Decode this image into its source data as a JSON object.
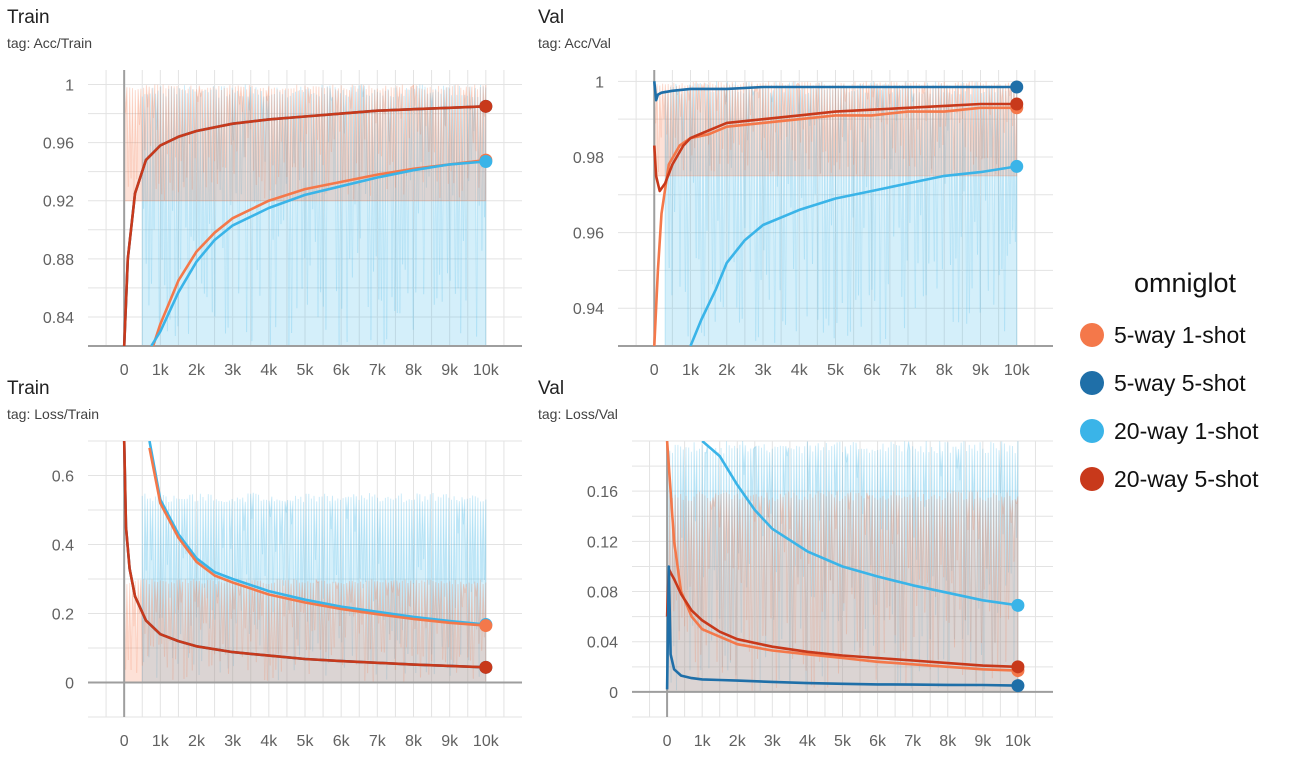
{
  "legend": {
    "title": "omniglot",
    "items": [
      {
        "label": "5-way 1-shot",
        "color": "#f4784a"
      },
      {
        "label": "5-way 5-shot",
        "color": "#1f6fa8"
      },
      {
        "label": "20-way 1-shot",
        "color": "#3ab4e8"
      },
      {
        "label": "20-way 5-shot",
        "color": "#c8391b"
      }
    ]
  },
  "chart_data": [
    {
      "type": "line",
      "title": "Train",
      "subtitle": "tag: Acc/Train",
      "xlim": [
        -1000,
        11000
      ],
      "ylim": [
        0.82,
        1.01
      ],
      "xticks": [
        0,
        1000,
        2000,
        3000,
        4000,
        5000,
        6000,
        7000,
        8000,
        9000,
        10000
      ],
      "xtick_labels": [
        "0",
        "1k",
        "2k",
        "3k",
        "4k",
        "5k",
        "6k",
        "7k",
        "8k",
        "9k",
        "10k"
      ],
      "yticks": [
        0.84,
        0.88,
        0.92,
        0.96,
        1
      ],
      "ytick_labels": [
        "0.84",
        "0.88",
        "0.92",
        "0.96",
        "1"
      ],
      "noise_bands": [
        {
          "series": "20-way 1-shot",
          "color": "#3ab4e8",
          "x_from": 500,
          "x_to": 10000,
          "y_low": 0.82,
          "y_high": 1.0
        },
        {
          "series": "5-way 1-shot",
          "color": "#f4784a",
          "x_from": 0,
          "x_to": 10000,
          "y_low": 0.92,
          "y_high": 1.0
        }
      ],
      "series": [
        {
          "name": "5-way 1-shot",
          "color": "#f4784a",
          "x": [
            800,
            1000,
            1500,
            2000,
            2500,
            3000,
            4000,
            5000,
            6000,
            7000,
            8000,
            9000,
            10000
          ],
          "y": [
            0.82,
            0.835,
            0.865,
            0.885,
            0.898,
            0.908,
            0.92,
            0.928,
            0.933,
            0.938,
            0.942,
            0.945,
            0.948
          ]
        },
        {
          "name": "20-way 1-shot",
          "color": "#3ab4e8",
          "x": [
            750,
            1000,
            1500,
            2000,
            2500,
            3000,
            4000,
            5000,
            6000,
            7000,
            8000,
            9000,
            10000
          ],
          "y": [
            0.82,
            0.83,
            0.857,
            0.878,
            0.893,
            0.903,
            0.915,
            0.924,
            0.93,
            0.936,
            0.941,
            0.945,
            0.947
          ]
        },
        {
          "name": "5-way 5-shot",
          "color": "#1f6fa8",
          "x": [
            0,
            100,
            300,
            600,
            1000,
            1500,
            2000,
            3000,
            4000,
            5000,
            6000,
            7000,
            8000,
            9000,
            10000
          ],
          "y": [
            0.82,
            0.88,
            0.925,
            0.948,
            0.958,
            0.964,
            0.968,
            0.973,
            0.976,
            0.978,
            0.98,
            0.982,
            0.983,
            0.984,
            0.985
          ]
        },
        {
          "name": "20-way 5-shot",
          "color": "#c8391b",
          "x": [
            0,
            100,
            300,
            600,
            1000,
            1500,
            2000,
            3000,
            4000,
            5000,
            6000,
            7000,
            8000,
            9000,
            10000
          ],
          "y": [
            0.82,
            0.88,
            0.925,
            0.948,
            0.958,
            0.964,
            0.968,
            0.973,
            0.976,
            0.978,
            0.98,
            0.982,
            0.983,
            0.984,
            0.985
          ]
        }
      ]
    },
    {
      "type": "line",
      "title": "Val",
      "subtitle": "tag: Acc/Val",
      "xlim": [
        -1000,
        11000
      ],
      "ylim": [
        0.93,
        1.003
      ],
      "xticks": [
        0,
        1000,
        2000,
        3000,
        4000,
        5000,
        6000,
        7000,
        8000,
        9000,
        10000
      ],
      "xtick_labels": [
        "0",
        "1k",
        "2k",
        "3k",
        "4k",
        "5k",
        "6k",
        "7k",
        "8k",
        "9k",
        "10k"
      ],
      "yticks": [
        0.94,
        0.96,
        0.98,
        1
      ],
      "ytick_labels": [
        "0.94",
        "0.96",
        "0.98",
        "1"
      ],
      "noise_bands": [
        {
          "series": "20-way 1-shot",
          "color": "#3ab4e8",
          "x_from": 300,
          "x_to": 10000,
          "y_low": 0.93,
          "y_high": 1.0
        },
        {
          "series": "5-way 1-shot",
          "color": "#f4784a",
          "x_from": 0,
          "x_to": 10000,
          "y_low": 0.975,
          "y_high": 1.0
        }
      ],
      "series": [
        {
          "name": "20-way 1-shot",
          "color": "#3ab4e8",
          "x": [
            1000,
            1300,
            1700,
            2000,
            2500,
            3000,
            4000,
            5000,
            6000,
            7000,
            8000,
            9000,
            10000
          ],
          "y": [
            0.93,
            0.937,
            0.945,
            0.952,
            0.958,
            0.962,
            0.966,
            0.969,
            0.971,
            0.973,
            0.975,
            0.976,
            0.9775
          ]
        },
        {
          "name": "5-way 1-shot",
          "color": "#f4784a",
          "x": [
            0,
            100,
            200,
            400,
            700,
            1000,
            1500,
            2000,
            3000,
            4000,
            5000,
            6000,
            7000,
            8000,
            9000,
            10000
          ],
          "y": [
            0.93,
            0.95,
            0.965,
            0.978,
            0.983,
            0.985,
            0.986,
            0.988,
            0.989,
            0.99,
            0.991,
            0.991,
            0.992,
            0.992,
            0.993,
            0.993
          ]
        },
        {
          "name": "20-way 5-shot",
          "color": "#c8391b",
          "x": [
            0,
            50,
            150,
            300,
            500,
            800,
            1000,
            1500,
            2000,
            3000,
            4000,
            5000,
            6000,
            7000,
            8000,
            9000,
            10000
          ],
          "y": [
            0.983,
            0.975,
            0.971,
            0.973,
            0.978,
            0.983,
            0.985,
            0.987,
            0.989,
            0.99,
            0.991,
            0.992,
            0.9925,
            0.993,
            0.9935,
            0.994,
            0.994
          ]
        },
        {
          "name": "5-way 5-shot",
          "color": "#1f6fa8",
          "x": [
            0,
            50,
            100,
            200,
            500,
            1000,
            2000,
            3000,
            4000,
            5000,
            6000,
            7000,
            8000,
            9000,
            10000
          ],
          "y": [
            1.0,
            0.995,
            0.9965,
            0.997,
            0.9975,
            0.998,
            0.998,
            0.9985,
            0.9985,
            0.9985,
            0.9985,
            0.9985,
            0.9985,
            0.9985,
            0.9985
          ]
        }
      ]
    },
    {
      "type": "line",
      "title": "Train",
      "subtitle": "tag: Loss/Train",
      "xlim": [
        -1000,
        11000
      ],
      "ylim": [
        -0.1,
        0.7
      ],
      "xticks": [
        0,
        1000,
        2000,
        3000,
        4000,
        5000,
        6000,
        7000,
        8000,
        9000,
        10000
      ],
      "xtick_labels": [
        "0",
        "1k",
        "2k",
        "3k",
        "4k",
        "5k",
        "6k",
        "7k",
        "8k",
        "9k",
        "10k"
      ],
      "yticks": [
        0,
        0.2,
        0.4,
        0.6
      ],
      "ytick_labels": [
        "0",
        "0.2",
        "0.4",
        "0.6"
      ],
      "noise_bands": [
        {
          "series": "20-way 1-shot",
          "color": "#3ab4e8",
          "x_from": 500,
          "x_to": 10000,
          "y_low": 0.0,
          "y_high": 0.55
        },
        {
          "series": "5-way 1-shot",
          "color": "#f4784a",
          "x_from": 0,
          "x_to": 10000,
          "y_low": 0.0,
          "y_high": 0.3
        }
      ],
      "series": [
        {
          "name": "20-way 1-shot",
          "color": "#3ab4e8",
          "x": [
            700,
            1000,
            1500,
            2000,
            2500,
            3000,
            4000,
            5000,
            6000,
            7000,
            8000,
            9000,
            10000
          ],
          "y": [
            0.7,
            0.53,
            0.43,
            0.36,
            0.32,
            0.3,
            0.265,
            0.24,
            0.22,
            0.205,
            0.19,
            0.178,
            0.168
          ]
        },
        {
          "name": "5-way 1-shot",
          "color": "#f4784a",
          "x": [
            700,
            1000,
            1500,
            2000,
            2500,
            3000,
            4000,
            5000,
            6000,
            7000,
            8000,
            9000,
            10000
          ],
          "y": [
            0.68,
            0.52,
            0.42,
            0.35,
            0.31,
            0.29,
            0.255,
            0.232,
            0.213,
            0.198,
            0.184,
            0.173,
            0.165
          ]
        },
        {
          "name": "5-way 5-shot",
          "color": "#1f6fa8",
          "x": [
            0,
            50,
            150,
            300,
            600,
            1000,
            1500,
            2000,
            3000,
            4000,
            5000,
            6000,
            7000,
            8000,
            9000,
            10000
          ],
          "y": [
            0.7,
            0.45,
            0.33,
            0.25,
            0.18,
            0.14,
            0.12,
            0.105,
            0.088,
            0.078,
            0.068,
            0.062,
            0.057,
            0.052,
            0.048,
            0.044
          ]
        },
        {
          "name": "20-way 5-shot",
          "color": "#c8391b",
          "x": [
            0,
            50,
            150,
            300,
            600,
            1000,
            1500,
            2000,
            3000,
            4000,
            5000,
            6000,
            7000,
            8000,
            9000,
            10000
          ],
          "y": [
            0.7,
            0.45,
            0.33,
            0.25,
            0.18,
            0.14,
            0.12,
            0.105,
            0.088,
            0.078,
            0.068,
            0.062,
            0.057,
            0.052,
            0.048,
            0.044
          ]
        }
      ]
    },
    {
      "type": "line",
      "title": "Val",
      "subtitle": "tag: Loss/Val",
      "xlim": [
        -1000,
        11000
      ],
      "ylim": [
        -0.02,
        0.2
      ],
      "xticks": [
        0,
        1000,
        2000,
        3000,
        4000,
        5000,
        6000,
        7000,
        8000,
        9000,
        10000
      ],
      "xtick_labels": [
        "0",
        "1k",
        "2k",
        "3k",
        "4k",
        "5k",
        "6k",
        "7k",
        "8k",
        "9k",
        "10k"
      ],
      "yticks": [
        0,
        0.04,
        0.08,
        0.12,
        0.16
      ],
      "ytick_labels": [
        "0",
        "0.04",
        "0.08",
        "0.12",
        "0.16"
      ],
      "noise_bands": [
        {
          "series": "20-way 1-shot",
          "color": "#3ab4e8",
          "x_from": 0,
          "x_to": 10000,
          "y_low": 0.0,
          "y_high": 0.2
        },
        {
          "series": "5-way 1-shot",
          "color": "#f4784a",
          "x_from": 0,
          "x_to": 10000,
          "y_low": 0.0,
          "y_high": 0.16
        }
      ],
      "series": [
        {
          "name": "20-way 1-shot",
          "color": "#3ab4e8",
          "x": [
            1000,
            1500,
            2000,
            2500,
            3000,
            4000,
            5000,
            6000,
            7000,
            8000,
            9000,
            10000
          ],
          "y": [
            0.2,
            0.188,
            0.165,
            0.145,
            0.13,
            0.112,
            0.1,
            0.092,
            0.085,
            0.079,
            0.073,
            0.069
          ]
        },
        {
          "name": "5-way 1-shot",
          "color": "#f4784a",
          "x": [
            0,
            100,
            200,
            400,
            700,
            1000,
            1500,
            2000,
            3000,
            4000,
            5000,
            6000,
            7000,
            8000,
            9000,
            10000
          ],
          "y": [
            0.2,
            0.16,
            0.12,
            0.08,
            0.06,
            0.05,
            0.044,
            0.038,
            0.033,
            0.03,
            0.027,
            0.024,
            0.022,
            0.02,
            0.018,
            0.017
          ]
        },
        {
          "name": "20-way 5-shot",
          "color": "#c8391b",
          "x": [
            0,
            50,
            100,
            200,
            400,
            700,
            1000,
            1500,
            2000,
            3000,
            4000,
            5000,
            6000,
            7000,
            8000,
            9000,
            10000
          ],
          "y": [
            0.06,
            0.098,
            0.095,
            0.09,
            0.078,
            0.065,
            0.057,
            0.048,
            0.042,
            0.036,
            0.032,
            0.029,
            0.027,
            0.025,
            0.023,
            0.021,
            0.02
          ]
        },
        {
          "name": "5-way 5-shot",
          "color": "#1f6fa8",
          "x": [
            0,
            50,
            100,
            200,
            400,
            700,
            1000,
            1500,
            2000,
            3000,
            4000,
            5000,
            6000,
            7000,
            8000,
            9000,
            10000
          ],
          "y": [
            0.002,
            0.1,
            0.03,
            0.018,
            0.013,
            0.011,
            0.01,
            0.0095,
            0.009,
            0.008,
            0.007,
            0.0065,
            0.006,
            0.0058,
            0.0056,
            0.0055,
            0.005
          ]
        }
      ]
    }
  ]
}
